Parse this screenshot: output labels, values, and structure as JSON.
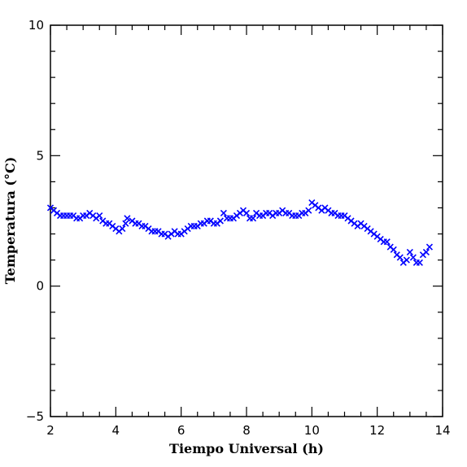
{
  "chart_data": {
    "type": "scatter",
    "title": "",
    "xlabel": "Tiempo Universal (h)",
    "ylabel": "Temperatura (°C)",
    "xlim": [
      2,
      14
    ],
    "ylim": [
      -5,
      10
    ],
    "x_ticks": [
      2,
      4,
      6,
      8,
      10,
      12,
      14
    ],
    "y_ticks": [
      -5,
      0,
      5,
      10
    ],
    "marker": "x",
    "marker_color": "#0000ff",
    "grid": false,
    "legend": "none",
    "series": [
      {
        "points": [
          [
            2.0,
            3.0
          ],
          [
            2.1,
            2.9
          ],
          [
            2.2,
            2.8
          ],
          [
            2.3,
            2.7
          ],
          [
            2.4,
            2.7
          ],
          [
            2.5,
            2.7
          ],
          [
            2.6,
            2.7
          ],
          [
            2.7,
            2.7
          ],
          [
            2.8,
            2.6
          ],
          [
            2.9,
            2.6
          ],
          [
            3.0,
            2.7
          ],
          [
            3.1,
            2.7
          ],
          [
            3.2,
            2.8
          ],
          [
            3.3,
            2.7
          ],
          [
            3.4,
            2.6
          ],
          [
            3.5,
            2.7
          ],
          [
            3.6,
            2.5
          ],
          [
            3.7,
            2.4
          ],
          [
            3.8,
            2.4
          ],
          [
            3.9,
            2.3
          ],
          [
            4.0,
            2.2
          ],
          [
            4.1,
            2.1
          ],
          [
            4.2,
            2.2
          ],
          [
            4.3,
            2.4
          ],
          [
            4.35,
            2.6
          ],
          [
            4.5,
            2.5
          ],
          [
            4.6,
            2.4
          ],
          [
            4.7,
            2.4
          ],
          [
            4.8,
            2.3
          ],
          [
            4.9,
            2.3
          ],
          [
            5.0,
            2.2
          ],
          [
            5.1,
            2.1
          ],
          [
            5.2,
            2.1
          ],
          [
            5.3,
            2.1
          ],
          [
            5.4,
            2.0
          ],
          [
            5.5,
            2.0
          ],
          [
            5.6,
            1.9
          ],
          [
            5.7,
            2.0
          ],
          [
            5.8,
            2.1
          ],
          [
            5.9,
            2.0
          ],
          [
            6.0,
            2.0
          ],
          [
            6.1,
            2.1
          ],
          [
            6.2,
            2.2
          ],
          [
            6.3,
            2.3
          ],
          [
            6.4,
            2.3
          ],
          [
            6.5,
            2.3
          ],
          [
            6.6,
            2.4
          ],
          [
            6.7,
            2.4
          ],
          [
            6.8,
            2.5
          ],
          [
            6.9,
            2.5
          ],
          [
            7.0,
            2.4
          ],
          [
            7.1,
            2.4
          ],
          [
            7.2,
            2.5
          ],
          [
            7.3,
            2.8
          ],
          [
            7.4,
            2.6
          ],
          [
            7.5,
            2.6
          ],
          [
            7.6,
            2.6
          ],
          [
            7.7,
            2.7
          ],
          [
            7.8,
            2.8
          ],
          [
            7.9,
            2.9
          ],
          [
            8.0,
            2.8
          ],
          [
            8.1,
            2.6
          ],
          [
            8.2,
            2.6
          ],
          [
            8.3,
            2.8
          ],
          [
            8.4,
            2.7
          ],
          [
            8.5,
            2.7
          ],
          [
            8.6,
            2.8
          ],
          [
            8.7,
            2.8
          ],
          [
            8.8,
            2.7
          ],
          [
            8.9,
            2.8
          ],
          [
            9.0,
            2.8
          ],
          [
            9.1,
            2.9
          ],
          [
            9.2,
            2.8
          ],
          [
            9.3,
            2.8
          ],
          [
            9.4,
            2.7
          ],
          [
            9.5,
            2.7
          ],
          [
            9.6,
            2.7
          ],
          [
            9.7,
            2.8
          ],
          [
            9.8,
            2.8
          ],
          [
            9.9,
            2.9
          ],
          [
            10.0,
            3.2
          ],
          [
            10.1,
            3.1
          ],
          [
            10.2,
            3.0
          ],
          [
            10.3,
            2.9
          ],
          [
            10.4,
            3.0
          ],
          [
            10.5,
            2.9
          ],
          [
            10.6,
            2.8
          ],
          [
            10.7,
            2.8
          ],
          [
            10.8,
            2.7
          ],
          [
            10.9,
            2.7
          ],
          [
            11.0,
            2.7
          ],
          [
            11.1,
            2.6
          ],
          [
            11.2,
            2.5
          ],
          [
            11.3,
            2.4
          ],
          [
            11.4,
            2.3
          ],
          [
            11.5,
            2.4
          ],
          [
            11.6,
            2.3
          ],
          [
            11.7,
            2.2
          ],
          [
            11.8,
            2.1
          ],
          [
            11.9,
            2.0
          ],
          [
            12.0,
            1.9
          ],
          [
            12.1,
            1.8
          ],
          [
            12.2,
            1.7
          ],
          [
            12.3,
            1.7
          ],
          [
            12.4,
            1.5
          ],
          [
            12.5,
            1.4
          ],
          [
            12.6,
            1.2
          ],
          [
            12.7,
            1.1
          ],
          [
            12.8,
            0.9
          ],
          [
            12.9,
            1.0
          ],
          [
            13.0,
            1.3
          ],
          [
            13.1,
            1.1
          ],
          [
            13.2,
            0.9
          ],
          [
            13.3,
            0.9
          ],
          [
            13.4,
            1.2
          ],
          [
            13.5,
            1.3
          ],
          [
            13.6,
            1.5
          ]
        ]
      }
    ]
  }
}
